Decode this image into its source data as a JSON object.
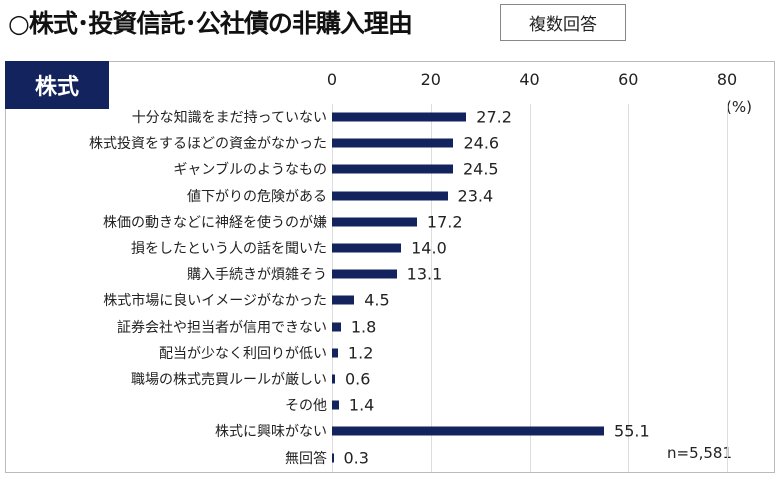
{
  "title": "○株式･投資信託･公社債の非購入理由",
  "badge": "複数回答",
  "chart_data": {
    "type": "bar",
    "orientation": "horizontal",
    "section_label": "株式",
    "categories": [
      "十分な知識をまだ持っていない",
      "株式投資をするほどの資金がなかった",
      "ギャンブルのようなもの",
      "値下がりの危険がある",
      "株価の動きなどに神経を使うのが嫌",
      "損をしたという人の話を聞いた",
      "購入手続きが煩雑そう",
      "株式市場に良いイメージがなかった",
      "証券会社や担当者が信用できない",
      "配当が少なく利回りが低い",
      "職場の株式売買ルールが厳しい",
      "その他",
      "株式に興味がない",
      "無回答"
    ],
    "values": [
      27.2,
      24.6,
      24.5,
      23.4,
      17.2,
      14.0,
      13.1,
      4.5,
      1.8,
      1.2,
      0.6,
      1.4,
      55.1,
      0.3
    ],
    "value_labels": [
      "27.2",
      "24.6",
      "24.5",
      "23.4",
      "17.2",
      "14.0",
      "13.1",
      "4.5",
      "1.8",
      "1.2",
      "0.6",
      "1.4",
      "55.1",
      "0.3"
    ],
    "xlim": [
      0,
      80
    ],
    "ticks": [
      "0",
      "20",
      "40",
      "60",
      "80"
    ],
    "tick_values": [
      0,
      20,
      40,
      60,
      80
    ],
    "unit": "(%)",
    "note": "n=5,581",
    "bar_color": "#13235e",
    "grid": true
  }
}
